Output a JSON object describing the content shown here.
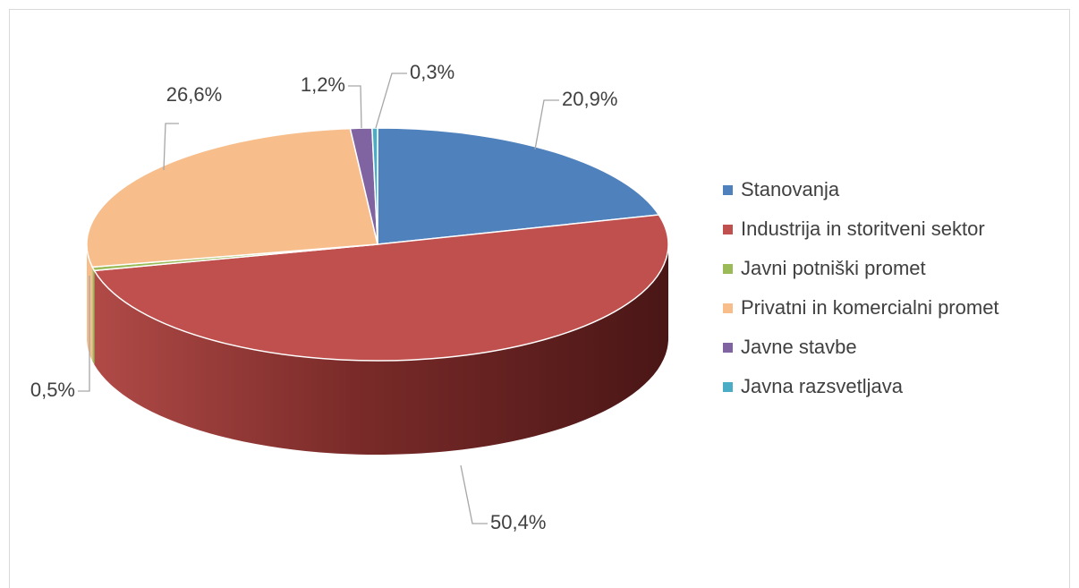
{
  "chart_data": {
    "type": "pie",
    "categories": [
      "Stanovanja",
      "Industrija in storitveni sektor",
      "Javni potniški promet",
      "Privatni in komercialni promet",
      "Javne stavbe",
      "Javna razsvetljava"
    ],
    "values": [
      20.9,
      50.4,
      0.5,
      26.6,
      1.2,
      0.3
    ],
    "data_labels": [
      "20,9%",
      "50,4%",
      "0,5%",
      "26,6%",
      "1,2%",
      "0,3%"
    ],
    "colors": [
      "#4f81bd",
      "#c0504d",
      "#9bbb59",
      "#f7be8c",
      "#8064a2",
      "#4bacc6"
    ],
    "legend_position": "right",
    "style": "3d"
  }
}
